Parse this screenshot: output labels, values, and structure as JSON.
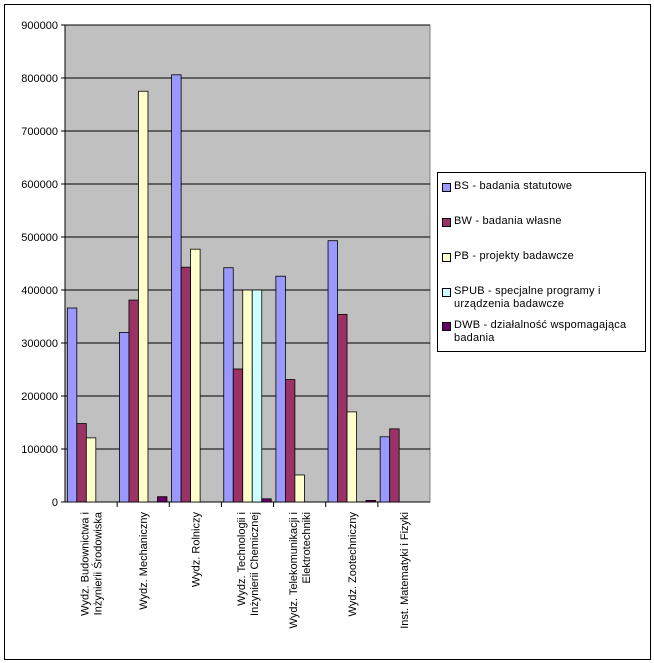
{
  "chart_data": {
    "type": "bar",
    "categories": [
      [
        "Wydz. Budownictwa i",
        "Inżynierii Środowiska"
      ],
      [
        "Wydz. Mechaniczny"
      ],
      [
        "Wydz. Rolniczy"
      ],
      [
        "Wydz. Technologii i",
        "Inżynierii Chemicznej"
      ],
      [
        "Wydz. Telekomunikacji i",
        "Elektrotechniki"
      ],
      [
        "Wydz. Zootechniczny"
      ],
      [
        "Inst. Matematyki i Fizyki"
      ]
    ],
    "series": [
      {
        "name": "BS - badania statutowe",
        "color": "#9999ff",
        "values": [
          366000,
          320000,
          806000,
          442000,
          426000,
          493000,
          123000
        ]
      },
      {
        "name": "BW - badania własne",
        "color": "#993366",
        "values": [
          148000,
          381000,
          443000,
          251000,
          231000,
          354000,
          138000
        ]
      },
      {
        "name": "PB - projekty badawcze",
        "color": "#ffffcc",
        "values": [
          121000,
          775000,
          477000,
          400000,
          51000,
          170000,
          0
        ]
      },
      {
        "name": "SPUB - specjalne programy i urządzenia badawcze",
        "color": "#ccffff",
        "values": [
          0,
          0,
          0,
          400000,
          0,
          0,
          0
        ]
      },
      {
        "name": "DWB - działalność wspomagająca badania",
        "color": "#660066",
        "values": [
          0,
          10000,
          0,
          6000,
          0,
          3000,
          0
        ]
      }
    ],
    "ylim": [
      0,
      900000
    ],
    "yticks": [
      "0",
      "100000",
      "200000",
      "300000",
      "400000",
      "500000",
      "600000",
      "700000",
      "800000",
      "900000"
    ],
    "grid": true,
    "plot_background": "#c0c0c0",
    "legend_position": "right"
  }
}
